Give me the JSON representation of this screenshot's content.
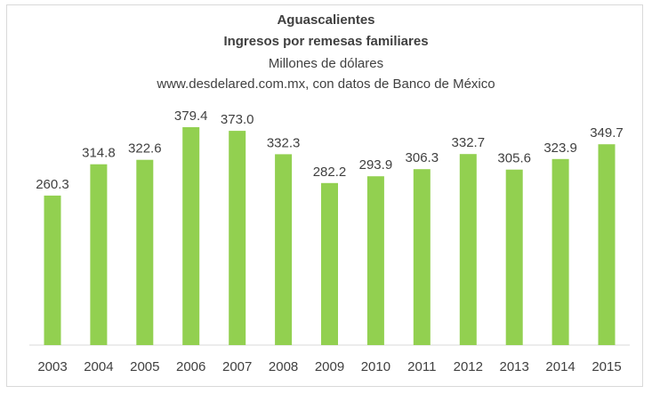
{
  "title": "Aguascalientes",
  "subtitle": "Ingresos por remesas familiares",
  "units": "Millones de dólares",
  "source": "www.desdelared.com.mx, con datos de Banco de México",
  "colors": {
    "bar": "#92d050",
    "axis": "#d9d9d9",
    "text": "#404040"
  },
  "chart_data": {
    "type": "bar",
    "categories": [
      "2003",
      "2004",
      "2005",
      "2006",
      "2007",
      "2008",
      "2009",
      "2010",
      "2011",
      "2012",
      "2013",
      "2014",
      "2015"
    ],
    "values": [
      260.3,
      314.8,
      322.6,
      379.4,
      373.0,
      332.3,
      282.2,
      293.9,
      306.3,
      332.7,
      305.6,
      323.9,
      349.7
    ],
    "value_labels": [
      "260.3",
      "314.8",
      "322.6",
      "379.4",
      "373.0",
      "332.3",
      "282.2",
      "293.9",
      "306.3",
      "332.7",
      "305.6",
      "323.9",
      "349.7"
    ],
    "title": "Aguascalientes",
    "subtitle": "Ingresos por remesas familiares",
    "xlabel": "",
    "ylabel": "",
    "ylim": [
      0,
      400
    ],
    "grid": false,
    "legend": "none"
  }
}
